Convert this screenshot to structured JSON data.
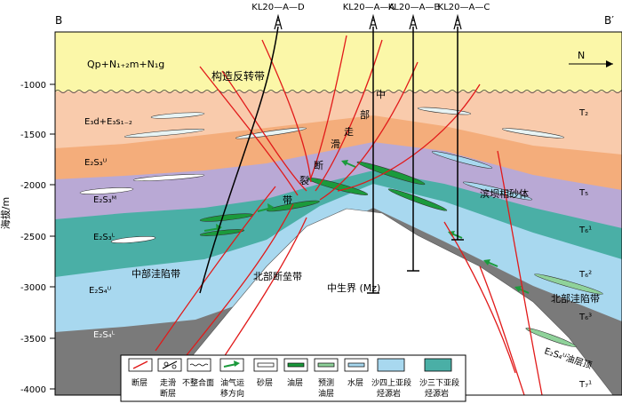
{
  "section": {
    "left_end": "B",
    "right_end": "B′",
    "north_label": "N",
    "y_axis_title": "海拔/m",
    "y_ticks": [
      "-1000",
      "-1500",
      "-2000",
      "-2500",
      "-3000",
      "-3500",
      "-4000"
    ]
  },
  "wells": [
    {
      "name": "KL20—A—D"
    },
    {
      "name": "KL20—A—A"
    },
    {
      "name": "KL20—A—B"
    },
    {
      "name": "KL20—A—C"
    }
  ],
  "strata_left": [
    {
      "label": "Qp+N₁₊₂m+N₁g"
    },
    {
      "label": "E₃d+E₃s₁₋₂"
    },
    {
      "label": "E₂S₃ᵁ"
    },
    {
      "label": "E₂S₃ᴹ"
    },
    {
      "label": "E₂S₃ᴸ"
    },
    {
      "label": "E₂S₄ᵁ"
    },
    {
      "label": "E₂S₄ᴸ"
    }
  ],
  "strata_right": [
    {
      "label": "T₂"
    },
    {
      "label": "T₅"
    },
    {
      "label": "T₆¹"
    },
    {
      "label": "T₆²"
    },
    {
      "label": "T₆³"
    },
    {
      "label": "T₇¹"
    }
  ],
  "annotations": {
    "inversion_belt": "构造反转带",
    "central_fault": [
      "中",
      "部",
      "走",
      "滑",
      "断",
      "裂",
      "带"
    ],
    "barrier_sand": "滨坝相砂体",
    "sag_north": "北部洼陷带",
    "sag_center": "中部洼陷带",
    "fault_belt_north": "北部断垒带",
    "mesozoic": "中生界 (Mz)",
    "fault_word": "断",
    "fault_word_2": "层",
    "s4_oil_top": "E₂S₄ᵁ油层顶"
  },
  "legend": [
    {
      "name": "fault",
      "label": [
        "断层"
      ]
    },
    {
      "name": "strike-slip-fault",
      "label": [
        "走滑",
        "断层"
      ]
    },
    {
      "name": "unconformity",
      "label": [
        "不整合面"
      ]
    },
    {
      "name": "migration",
      "label": [
        "油气运",
        "移方向"
      ]
    },
    {
      "name": "sandstone",
      "label": [
        "砂层"
      ]
    },
    {
      "name": "oil-layer",
      "label": [
        "油层"
      ]
    },
    {
      "name": "predicted-oil",
      "label": [
        "预测",
        "油层"
      ]
    },
    {
      "name": "water-layer",
      "label": [
        "水层"
      ]
    },
    {
      "name": "s4-upper-source",
      "label": [
        "沙四上亚段",
        "烃源岩"
      ]
    },
    {
      "name": "s3-lower-source",
      "label": [
        "沙三下亚段",
        "烃源岩"
      ]
    }
  ],
  "colors": {
    "quaternary": "#fbf7a8",
    "ed": "#f8c8a4",
    "s3u": "#f4ad7b",
    "s3m": "#b8a8d4",
    "s3l": "#4aafa6",
    "s4u": "#a6d6ee",
    "s4l": "#7a7a7a",
    "basement": "#ffffff",
    "fault": "#e11a1a",
    "oil": "#1b9a3c",
    "frame": "#000000"
  }
}
